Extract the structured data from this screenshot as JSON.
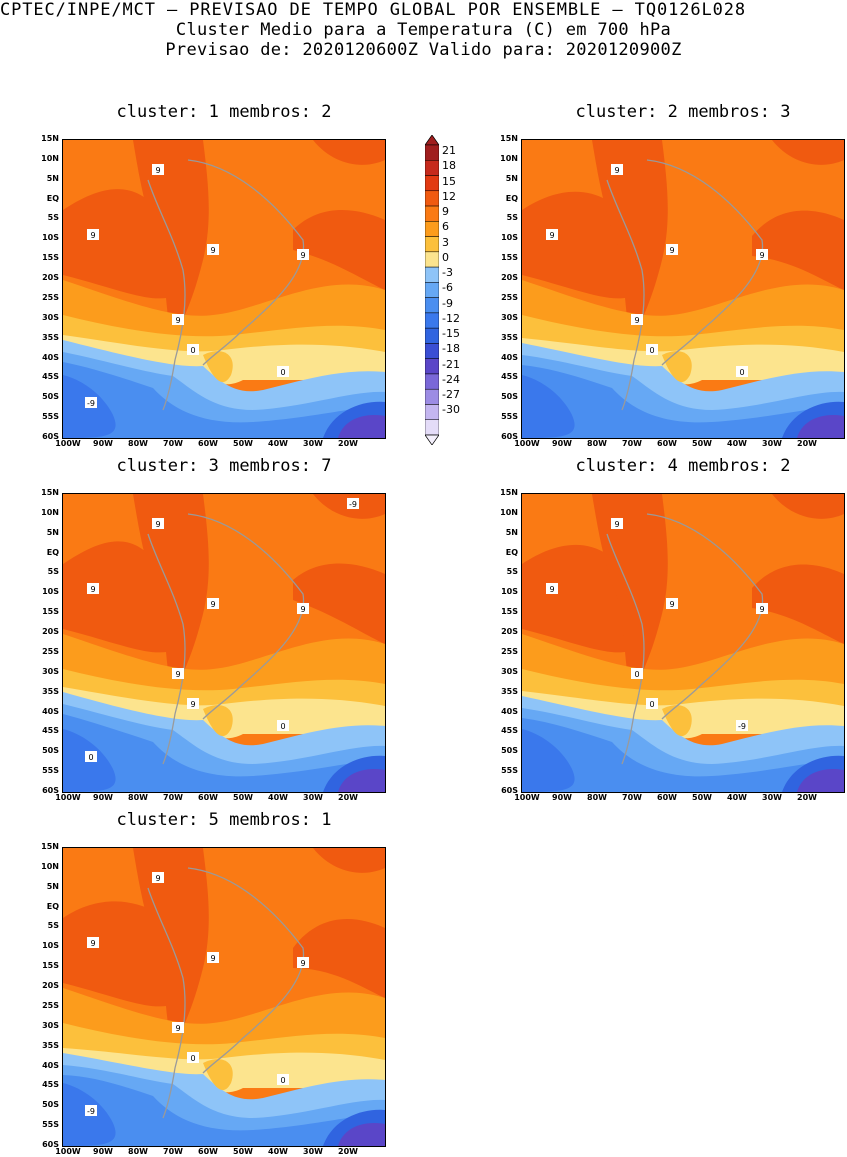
{
  "header": {
    "line1": "CPTEC/INPE/MCT — PREVISAO DE TEMPO GLOBAL POR ENSEMBLE — TQ0126L028",
    "line2": "Cluster Medio para a Temperatura (C) em 700 hPa",
    "line3": "Previsao de: 2020120600Z   Valido para: 2020120900Z"
  },
  "panels": [
    {
      "title": "cluster: 1   membros: 2"
    },
    {
      "title": "cluster: 2   membros: 3"
    },
    {
      "title": "cluster: 3   membros: 7"
    },
    {
      "title": "cluster: 4   membros: 2"
    },
    {
      "title": "cluster: 5   membros: 1"
    }
  ],
  "lat_labels": [
    "15N",
    "10N",
    "5N",
    "EQ",
    "5S",
    "10S",
    "15S",
    "20S",
    "25S",
    "30S",
    "35S",
    "40S",
    "45S",
    "50S",
    "55S",
    "60S"
  ],
  "lon_labels": [
    "100W",
    "90W",
    "80W",
    "70W",
    "60W",
    "50W",
    "40W",
    "30W",
    "20W"
  ],
  "contour_labels": {
    "p1": [
      "9",
      "9",
      "9",
      "9",
      "9",
      "0",
      "0",
      "-9"
    ],
    "p2": [
      "9",
      "9",
      "9",
      "9",
      "9",
      "0",
      "0"
    ],
    "p3": [
      "9",
      "9",
      "9",
      "9",
      "9",
      "9",
      "0",
      "0",
      "-9"
    ],
    "p4": [
      "9",
      "9",
      "9",
      "9",
      "0",
      "0",
      "-9"
    ],
    "p5": [
      "9",
      "9",
      "9",
      "9",
      "9",
      "0",
      "0",
      "-9"
    ]
  },
  "colorbar": {
    "labels": [
      "21",
      "18",
      "15",
      "12",
      "9",
      "6",
      "3",
      "0",
      "-3",
      "-6",
      "-9",
      "-12",
      "-15",
      "-18",
      "-21",
      "-24",
      "-27",
      "-30"
    ],
    "colors": [
      "#a01e1e",
      "#c62a1c",
      "#e23a12",
      "#f05a10",
      "#fa7a14",
      "#fc9c1c",
      "#fcc03c",
      "#fce48e",
      "#8ec4f8",
      "#66a8f4",
      "#4a8ef0",
      "#3a78ec",
      "#3064e0",
      "#3a4ed4",
      "#5a46c8",
      "#7a68d8",
      "#9c8ce4",
      "#c4b6f0",
      "#e4dcf8"
    ]
  },
  "fill_colors": {
    "c9p": "#f05a10",
    "c6": "#fa7a14",
    "c3": "#fc9c1c",
    "c0": "#fcc03c",
    "cm3": "#fce48e",
    "cm6": "#8ec4f8",
    "cm9": "#66a8f4",
    "cm12": "#4a8ef0",
    "cm15": "#3a78ec",
    "cm18": "#3064e0",
    "cm21": "#5a46c8"
  }
}
